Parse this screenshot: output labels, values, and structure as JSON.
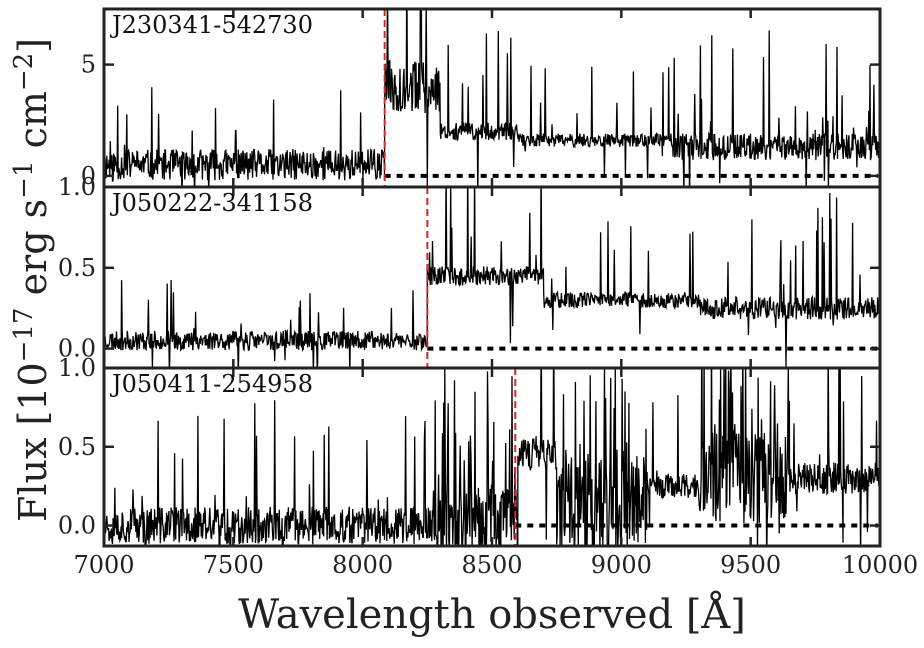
{
  "chart_data": {
    "type": "line",
    "xlabel": "Wavelength observed [Å]",
    "ylabel_parts": {
      "prefix": "Flux [10",
      "exp1": "−17",
      "mid": " erg s",
      "exp2": "−1",
      "mid2": " cm",
      "exp3": "−2",
      "suffix": "]"
    },
    "xlim": [
      7000,
      10000
    ],
    "x_ticks": [
      7000,
      7500,
      8000,
      8500,
      9000,
      9500,
      10000
    ],
    "colors": {
      "spectrum": "#000000",
      "break_line": "#d62728",
      "zero_line": "#000000",
      "frame": "#222222"
    },
    "panels": [
      {
        "name": "J230341-542730",
        "ylim": [
          -0.5,
          7.5
        ],
        "y_ticks": [
          0,
          5
        ],
        "y_tick_labels": [
          "0",
          "5"
        ],
        "break_wavelength": 8085,
        "zero_level": 0,
        "spectrum": {
          "seed": 11,
          "segments": [
            {
              "from": 7000,
              "to": 8085,
              "level": 0.5,
              "noise": 0.7,
              "spike": 3.5,
              "spike_rate": 0.05
            },
            {
              "from": 8085,
              "to": 8300,
              "level": 4.0,
              "noise": 1.2,
              "spike": 7.5,
              "spike_rate": 0.08
            },
            {
              "from": 8300,
              "to": 8600,
              "level": 2.0,
              "noise": 0.4,
              "spike": 5.5,
              "spike_rate": 0.06
            },
            {
              "from": 8600,
              "to": 9200,
              "level": 1.6,
              "noise": 0.3,
              "spike": 4.5,
              "spike_rate": 0.06
            },
            {
              "from": 9200,
              "to": 10000,
              "level": 1.3,
              "noise": 0.6,
              "spike": 5.5,
              "spike_rate": 0.12
            }
          ]
        }
      },
      {
        "name": "J050222-341158",
        "ylim": [
          -0.12,
          1.0
        ],
        "y_ticks": [
          0.0,
          0.5,
          1.0
        ],
        "y_tick_labels": [
          "0.0",
          "0.5",
          "1.0"
        ],
        "break_wavelength": 8250,
        "zero_level": 0.0,
        "spectrum": {
          "seed": 23,
          "segments": [
            {
              "from": 7000,
              "to": 8250,
              "level": 0.05,
              "noise": 0.06,
              "spike": 0.4,
              "spike_rate": 0.04
            },
            {
              "from": 8250,
              "to": 8700,
              "level": 0.45,
              "noise": 0.06,
              "spike": 0.85,
              "spike_rate": 0.05
            },
            {
              "from": 8700,
              "to": 9300,
              "level": 0.3,
              "noise": 0.05,
              "spike": 0.65,
              "spike_rate": 0.05
            },
            {
              "from": 9300,
              "to": 10000,
              "level": 0.25,
              "noise": 0.07,
              "spike": 0.75,
              "spike_rate": 0.07
            }
          ]
        }
      },
      {
        "name": "J050411-254958",
        "ylim": [
          -0.13,
          1.0
        ],
        "y_ticks": [
          0.0,
          0.5,
          1.0
        ],
        "y_tick_labels": [
          "0.0",
          "0.5",
          "1.0"
        ],
        "break_wavelength": 8590,
        "zero_level": 0.0,
        "spectrum": {
          "seed": 37,
          "segments": [
            {
              "from": 7000,
              "to": 8300,
              "level": 0.0,
              "noise": 0.12,
              "spike": 0.8,
              "spike_rate": 0.06
            },
            {
              "from": 8300,
              "to": 8600,
              "level": 0.05,
              "noise": 0.22,
              "spike": 1.0,
              "spike_rate": 0.15
            },
            {
              "from": 8600,
              "to": 8750,
              "level": 0.45,
              "noise": 0.1,
              "spike": 1.0,
              "spike_rate": 0.1
            },
            {
              "from": 8750,
              "to": 9100,
              "level": 0.15,
              "noise": 0.35,
              "spike": 1.0,
              "spike_rate": 0.2
            },
            {
              "from": 9100,
              "to": 9300,
              "level": 0.25,
              "noise": 0.08,
              "spike": 0.6,
              "spike_rate": 0.05
            },
            {
              "from": 9300,
              "to": 9650,
              "level": 0.3,
              "noise": 0.3,
              "spike": 1.0,
              "spike_rate": 0.25
            },
            {
              "from": 9650,
              "to": 10000,
              "level": 0.3,
              "noise": 0.1,
              "spike": 1.0,
              "spike_rate": 0.08
            }
          ]
        }
      }
    ]
  }
}
